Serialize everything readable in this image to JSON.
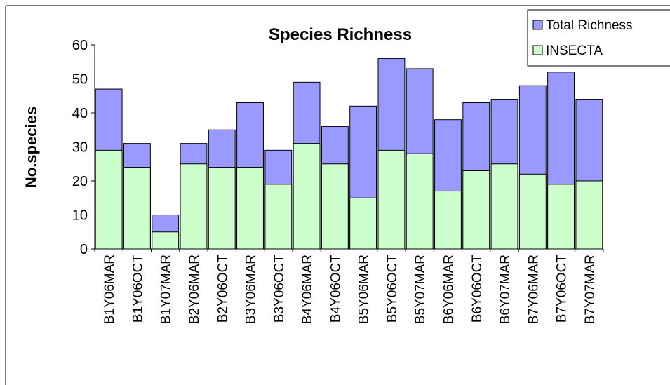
{
  "chart_data": {
    "type": "bar",
    "title": "Species Richness",
    "y_label": "No.species",
    "categories": [
      "B1Y06MAR",
      "B1Y06OCT",
      "B1Y07MAR",
      "B2Y06MAR",
      "B2Y06OCT",
      "B3Y06MAR",
      "B3Y06OCT",
      "B4Y06MAR",
      "B4Y06OCT",
      "B5Y06MAR",
      "B5Y06OCT",
      "B5Y07MAR",
      "B6Y06MAR",
      "B6Y06OCT",
      "B6Y07MAR",
      "B7Y06MAR",
      "B7Y06OCT",
      "B7Y07MAR"
    ],
    "series": [
      {
        "name": "Total Richness",
        "color": "#9999ff",
        "values": [
          47,
          31,
          10,
          31,
          35,
          43,
          29,
          49,
          36,
          42,
          56,
          53,
          38,
          43,
          44,
          48,
          52,
          44
        ]
      },
      {
        "name": "INSECTA",
        "color": "#ccffcc",
        "values": [
          29,
          24,
          5,
          25,
          24,
          24,
          19,
          31,
          25,
          15,
          29,
          28,
          17,
          23,
          25,
          22,
          19,
          20
        ]
      }
    ],
    "ylim": [
      0,
      60
    ],
    "yticks": [
      0,
      10,
      20,
      30,
      40,
      50,
      60
    ],
    "grid": false,
    "legend": "top-right"
  }
}
